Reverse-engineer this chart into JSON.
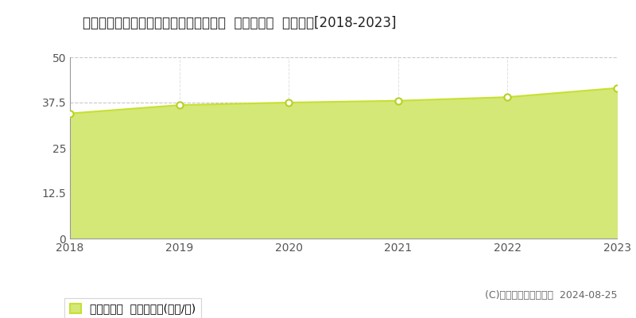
{
  "title": "宮城県多賀城市中央２丁目５０１番４外  基準地価格  地価推移[2018-2023]",
  "years": [
    2018,
    2019,
    2020,
    2021,
    2022,
    2023
  ],
  "values": [
    34.5,
    36.8,
    37.5,
    38.0,
    39.0,
    41.5
  ],
  "ylim": [
    0,
    50
  ],
  "yticks": [
    0,
    12.5,
    25,
    37.5,
    50
  ],
  "line_color": "#c8e030",
  "fill_color": "#d4e878",
  "marker_facecolor": "#ffffff",
  "marker_edgecolor": "#b8d020",
  "grid_color_h": "#bbbbbb",
  "grid_color_v": "#cccccc",
  "bg_color": "#ffffff",
  "legend_label": "基準地価格  平均坪単価(万円/坪)",
  "copyright_text": "(C)土地価格ドットコム  2024-08-25",
  "title_fontsize": 12,
  "tick_fontsize": 10,
  "legend_fontsize": 10,
  "copyright_fontsize": 9
}
